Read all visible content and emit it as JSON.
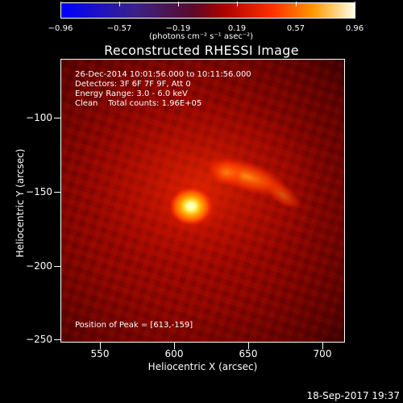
{
  "colorbar": {
    "ticks": [
      "−0.96",
      "−0.57",
      "−0.19",
      "0.19",
      "0.57",
      "0.96"
    ],
    "units": "(photons cm⁻² s⁻¹ asec⁻²)"
  },
  "title": "Reconstructed RHESSI Image",
  "annotations": {
    "time_range": "26-Dec-2014 10:01:56.000 to 10:11:56.000",
    "detectors": "Detectors: 3F 6F 7F 9F, Att 0",
    "energy": "Energy Range: 3.0 - 6.0 keV",
    "method": "Clean    Total counts: 1.96E+05",
    "peak": "Position of Peak = [613,-159]"
  },
  "axes": {
    "y_title": "Heliocentric Y (arcsec)",
    "x_title": "Heliocentric X (arcsec)",
    "y_ticks": [
      "−100",
      "−150",
      "−200",
      "−250"
    ],
    "x_ticks": [
      "550",
      "600",
      "650",
      "700"
    ],
    "x_range": [
      523,
      715
    ],
    "y_range": [
      -253,
      -62
    ]
  },
  "footer": "18-Sep-2017 19:37"
}
